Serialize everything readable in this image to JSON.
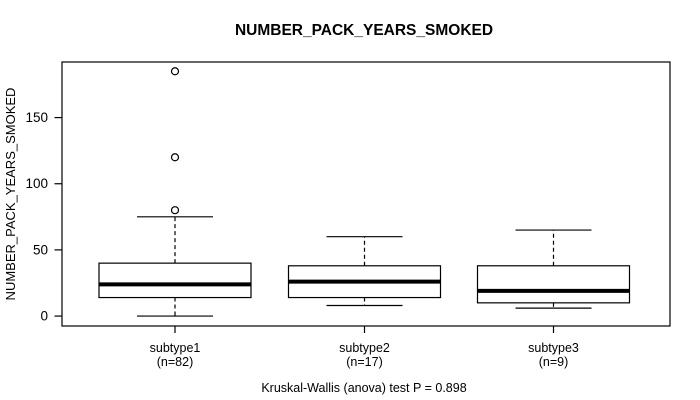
{
  "title": "NUMBER_PACK_YEARS_SMOKED",
  "chart_data": {
    "type": "boxplot",
    "title": "NUMBER_PACK_YEARS_SMOKED",
    "ylabel": "NUMBER_PACK_YEARS_SMOKED",
    "xlabel": "",
    "caption": "Kruskal-Wallis (anova) test P = 0.898",
    "ylim": [
      -7.5,
      192
    ],
    "yticks": [
      0,
      50,
      100,
      150
    ],
    "grid": false,
    "legend": "none",
    "groups": [
      {
        "label": "subtype1",
        "sublabel": "(n=82)",
        "n": 82,
        "whisker_low": 0,
        "q1": 14,
        "median": 24,
        "q3": 40,
        "whisker_high": 75,
        "outliers": [
          80,
          120,
          185
        ]
      },
      {
        "label": "subtype2",
        "sublabel": "(n=17)",
        "n": 17,
        "whisker_low": 8,
        "q1": 14,
        "median": 26,
        "q3": 38,
        "whisker_high": 60,
        "outliers": []
      },
      {
        "label": "subtype3",
        "sublabel": "(n=9)",
        "n": 9,
        "whisker_low": 6,
        "q1": 10,
        "median": 19,
        "q3": 38,
        "whisker_high": 65,
        "outliers": []
      }
    ],
    "colors": {
      "stroke": "#000000",
      "box_fill": "#ffffff",
      "background": "#ffffff"
    },
    "stat_test": {
      "name": "Kruskal-Wallis (anova)",
      "p_value": 0.898
    }
  }
}
